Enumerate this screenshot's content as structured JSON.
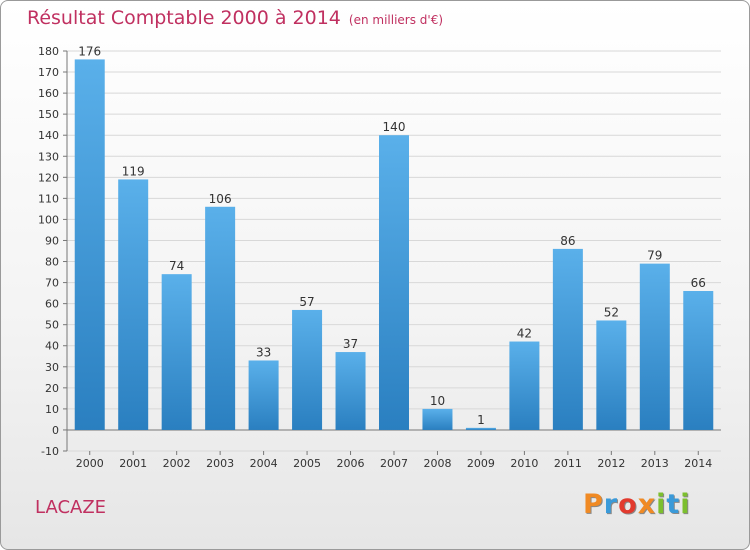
{
  "title": "Résultat Comptable 2000 à 2014",
  "unit_note": "(en milliers d'€)",
  "commune": "LACAZE",
  "logo": "Proxiti",
  "colors": {
    "title": "#c03060",
    "bar_top": "#5ab0ea",
    "bar_bottom": "#2a7fc0",
    "grid": "#d8d8d8",
    "axis": "#777777",
    "text": "#333333",
    "logo": [
      "#f08a24",
      "#3a9ad9",
      "#e23a2e",
      "#f08a24",
      "#7cbf2e",
      "#3a9ad9",
      "#7cbf2e"
    ]
  },
  "chart_data": {
    "type": "bar",
    "title": "Résultat Comptable 2000 à 2014",
    "xlabel": "",
    "ylabel": "",
    "categories": [
      "2000",
      "2001",
      "2002",
      "2003",
      "2004",
      "2005",
      "2006",
      "2007",
      "2008",
      "2009",
      "2010",
      "2011",
      "2012",
      "2013",
      "2014"
    ],
    "values": [
      176,
      119,
      74,
      106,
      33,
      57,
      37,
      140,
      10,
      1,
      42,
      86,
      52,
      79,
      66
    ],
    "ylim": [
      -10,
      180
    ],
    "yticks": [
      -10,
      0,
      10,
      20,
      30,
      40,
      50,
      60,
      70,
      80,
      90,
      100,
      110,
      120,
      130,
      140,
      150,
      160,
      170,
      180
    ],
    "grid": true
  }
}
